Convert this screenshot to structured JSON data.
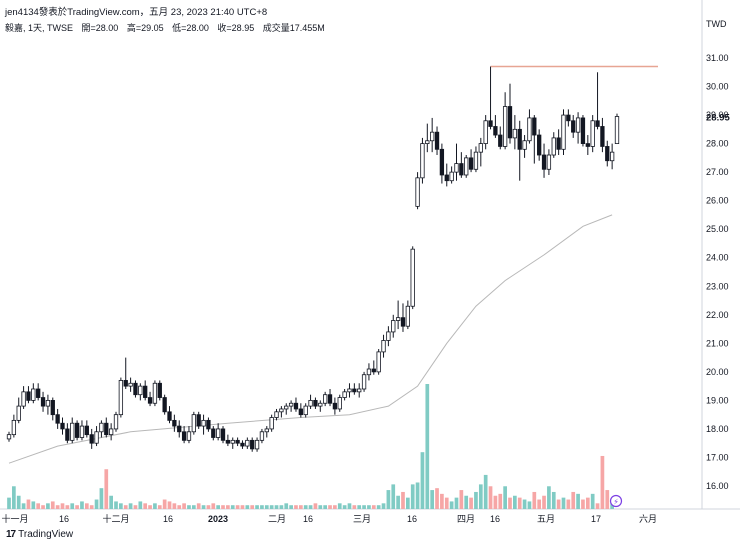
{
  "header": {
    "publisher": "jen4134發表於TradingView.com，五月 23, 2023 21:40 UTC+8",
    "symbol": "毅嘉, 1天, TWSE",
    "ohlcv": [
      "開=28.00",
      "高=29.05",
      "低=28.00",
      "收=28.95",
      "成交量17.455M"
    ]
  },
  "footer": {
    "logo": "TradingView"
  },
  "chart_data": {
    "type": "candlestick",
    "currency": "TWD",
    "y_axis_ticks": [
      "16.00",
      "17.00",
      "18.00",
      "19.00",
      "20.00",
      "21.00",
      "22.00",
      "23.00",
      "24.00",
      "25.00",
      "26.00",
      "27.00",
      "28.00",
      "29.00",
      "30.00",
      "31.00"
    ],
    "ylim": [
      15.2,
      31.9
    ],
    "last_price": "28.95",
    "x_axis_ticks": [
      "十一月",
      "16",
      "十二月",
      "16",
      "2023",
      "二月",
      "16",
      "三月",
      "16",
      "四月",
      "16",
      "五月",
      "17",
      "六月"
    ],
    "resistance_line": 30.7,
    "colors": {
      "up_candle": "#ffffff",
      "down_candle": "#131722",
      "volume_up": "#80cbc4",
      "volume_down": "#f6a6a6",
      "moving_average": "#b8b8b8",
      "resistance": "#e7a593"
    },
    "candles": [
      [
        17.65,
        17.9,
        17.55,
        17.8
      ],
      [
        17.8,
        18.5,
        17.7,
        18.3
      ],
      [
        18.3,
        19.1,
        18.2,
        18.8
      ],
      [
        18.8,
        19.5,
        18.7,
        19.3
      ],
      [
        19.3,
        19.5,
        18.9,
        19.0
      ],
      [
        19.0,
        19.6,
        18.9,
        19.4
      ],
      [
        19.4,
        19.6,
        19.0,
        19.1
      ],
      [
        19.1,
        19.3,
        18.6,
        18.8
      ],
      [
        18.8,
        19.2,
        18.5,
        19.0
      ],
      [
        19.0,
        19.1,
        18.3,
        18.5
      ],
      [
        18.5,
        18.7,
        18.0,
        18.2
      ],
      [
        18.2,
        18.4,
        17.8,
        18.0
      ],
      [
        18.0,
        18.2,
        17.5,
        17.6
      ],
      [
        17.6,
        18.4,
        17.5,
        18.2
      ],
      [
        18.2,
        18.3,
        17.6,
        17.7
      ],
      [
        17.7,
        18.3,
        17.6,
        18.1
      ],
      [
        18.1,
        18.3,
        17.7,
        17.8
      ],
      [
        17.8,
        18.0,
        17.3,
        17.5
      ],
      [
        17.5,
        18.1,
        17.4,
        17.9
      ],
      [
        17.9,
        18.3,
        17.7,
        18.2
      ],
      [
        18.2,
        18.4,
        17.7,
        17.8
      ],
      [
        17.8,
        18.2,
        17.6,
        18.0
      ],
      [
        18.0,
        18.6,
        17.9,
        18.5
      ],
      [
        18.5,
        19.8,
        18.4,
        19.7
      ],
      [
        19.7,
        20.5,
        19.4,
        19.5
      ],
      [
        19.5,
        19.8,
        19.3,
        19.6
      ],
      [
        19.6,
        19.7,
        19.1,
        19.2
      ],
      [
        19.2,
        19.6,
        19.0,
        19.5
      ],
      [
        19.5,
        19.7,
        19.0,
        19.1
      ],
      [
        19.1,
        19.3,
        18.8,
        18.9
      ],
      [
        18.9,
        19.7,
        18.8,
        19.6
      ],
      [
        19.6,
        19.7,
        19.0,
        19.1
      ],
      [
        19.1,
        19.2,
        18.5,
        18.6
      ],
      [
        18.6,
        18.8,
        18.2,
        18.3
      ],
      [
        18.3,
        18.5,
        17.9,
        18.1
      ],
      [
        18.1,
        18.3,
        17.7,
        17.9
      ],
      [
        17.9,
        18.1,
        17.5,
        17.6
      ],
      [
        17.6,
        18.1,
        17.5,
        17.9
      ],
      [
        17.9,
        18.6,
        17.8,
        18.5
      ],
      [
        18.5,
        18.6,
        18.0,
        18.1
      ],
      [
        18.1,
        18.5,
        17.8,
        18.3
      ],
      [
        18.3,
        18.4,
        17.9,
        18.0
      ],
      [
        18.0,
        18.1,
        17.6,
        17.7
      ],
      [
        17.7,
        18.2,
        17.6,
        18.0
      ],
      [
        18.0,
        18.1,
        17.5,
        17.6
      ],
      [
        17.6,
        17.8,
        17.4,
        17.5
      ],
      [
        17.5,
        17.7,
        17.3,
        17.6
      ],
      [
        17.6,
        17.7,
        17.4,
        17.5
      ],
      [
        17.5,
        17.6,
        17.3,
        17.4
      ],
      [
        17.4,
        17.7,
        17.3,
        17.6
      ],
      [
        17.6,
        17.7,
        17.2,
        17.3
      ],
      [
        17.3,
        17.7,
        17.2,
        17.6
      ],
      [
        17.6,
        18.0,
        17.5,
        17.9
      ],
      [
        17.9,
        18.1,
        17.7,
        18.0
      ],
      [
        18.0,
        18.5,
        17.9,
        18.4
      ],
      [
        18.4,
        18.7,
        18.3,
        18.6
      ],
      [
        18.6,
        18.8,
        18.4,
        18.7
      ],
      [
        18.7,
        18.9,
        18.5,
        18.8
      ],
      [
        18.8,
        19.0,
        18.6,
        18.9
      ],
      [
        18.9,
        19.1,
        18.6,
        18.7
      ],
      [
        18.7,
        18.9,
        18.4,
        18.5
      ],
      [
        18.5,
        18.9,
        18.4,
        18.8
      ],
      [
        18.8,
        19.2,
        18.7,
        19.0
      ],
      [
        19.0,
        19.1,
        18.7,
        18.8
      ],
      [
        18.8,
        19.0,
        18.6,
        18.9
      ],
      [
        18.9,
        19.3,
        18.8,
        19.2
      ],
      [
        19.2,
        19.4,
        18.8,
        18.9
      ],
      [
        18.9,
        19.1,
        18.5,
        18.7
      ],
      [
        18.7,
        19.2,
        18.6,
        19.1
      ],
      [
        19.1,
        19.4,
        19.0,
        19.3
      ],
      [
        19.3,
        19.6,
        19.1,
        19.4
      ],
      [
        19.4,
        19.6,
        19.2,
        19.3
      ],
      [
        19.3,
        19.6,
        19.1,
        19.4
      ],
      [
        19.4,
        20.0,
        19.3,
        19.9
      ],
      [
        19.9,
        20.3,
        19.7,
        20.1
      ],
      [
        20.1,
        20.4,
        19.9,
        20.0
      ],
      [
        20.0,
        20.8,
        19.9,
        20.7
      ],
      [
        20.7,
        21.3,
        20.5,
        21.1
      ],
      [
        21.1,
        21.6,
        20.9,
        21.4
      ],
      [
        21.4,
        22.0,
        21.2,
        21.8
      ],
      [
        21.8,
        22.5,
        21.5,
        21.9
      ],
      [
        21.9,
        22.4,
        21.4,
        21.6
      ],
      [
        21.6,
        22.5,
        21.5,
        22.3
      ],
      [
        22.3,
        24.4,
        22.2,
        24.3
      ],
      [
        25.8,
        27.0,
        25.7,
        26.8
      ],
      [
        26.8,
        28.2,
        26.6,
        28.0
      ],
      [
        28.0,
        28.7,
        27.7,
        28.1
      ],
      [
        28.1,
        28.9,
        27.7,
        28.4
      ],
      [
        28.4,
        28.6,
        27.6,
        27.8
      ],
      [
        27.8,
        28.0,
        26.6,
        26.9
      ],
      [
        26.9,
        27.3,
        26.5,
        26.7
      ],
      [
        26.7,
        27.2,
        26.6,
        27.0
      ],
      [
        27.0,
        28.0,
        26.7,
        27.3
      ],
      [
        27.3,
        27.7,
        26.8,
        26.9
      ],
      [
        26.9,
        27.6,
        26.8,
        27.5
      ],
      [
        27.5,
        27.8,
        27.0,
        27.1
      ],
      [
        27.1,
        27.9,
        27.0,
        27.7
      ],
      [
        27.7,
        28.2,
        27.2,
        28.0
      ],
      [
        28.0,
        29.0,
        27.8,
        28.8
      ],
      [
        28.8,
        30.7,
        28.5,
        28.6
      ],
      [
        28.6,
        29.0,
        28.2,
        28.3
      ],
      [
        28.3,
        28.6,
        27.8,
        27.9
      ],
      [
        27.9,
        29.8,
        27.8,
        29.3
      ],
      [
        29.3,
        30.1,
        28.0,
        28.2
      ],
      [
        28.2,
        29.0,
        27.8,
        28.5
      ],
      [
        28.5,
        28.8,
        26.7,
        27.8
      ],
      [
        27.8,
        28.3,
        27.5,
        28.1
      ],
      [
        28.1,
        29.2,
        28.0,
        28.9
      ],
      [
        28.9,
        29.0,
        27.3,
        28.3
      ],
      [
        28.3,
        28.5,
        27.4,
        27.6
      ],
      [
        27.6,
        28.0,
        26.8,
        27.1
      ],
      [
        27.1,
        27.8,
        26.9,
        27.6
      ],
      [
        27.6,
        28.4,
        27.5,
        28.2
      ],
      [
        28.2,
        28.5,
        27.6,
        27.8
      ],
      [
        27.8,
        29.2,
        27.6,
        29.0
      ],
      [
        29.0,
        29.2,
        28.6,
        28.8
      ],
      [
        28.8,
        29.0,
        28.2,
        28.4
      ],
      [
        28.4,
        29.1,
        28.0,
        28.9
      ],
      [
        28.9,
        29.0,
        27.9,
        28.0
      ],
      [
        28.0,
        28.3,
        27.6,
        27.9
      ],
      [
        27.9,
        29.0,
        27.7,
        28.8
      ],
      [
        28.8,
        30.5,
        28.5,
        28.6
      ],
      [
        28.6,
        28.9,
        27.7,
        27.9
      ],
      [
        27.9,
        28.1,
        27.2,
        27.4
      ],
      [
        27.4,
        28.0,
        27.1,
        27.7
      ],
      [
        28.0,
        29.05,
        28.0,
        28.95
      ]
    ],
    "volume": [
      6,
      12,
      7,
      3,
      5,
      4,
      3,
      2,
      3,
      4,
      2,
      3,
      2,
      3,
      2,
      4,
      3,
      2,
      5,
      11,
      21,
      7,
      4,
      3,
      2,
      3,
      2,
      4,
      3,
      2,
      3,
      2,
      5,
      4,
      3,
      2,
      3,
      2,
      2,
      3,
      2,
      2,
      3,
      2,
      2,
      2,
      2,
      2,
      2,
      2,
      2,
      2,
      2,
      2,
      2,
      2,
      2,
      3,
      2,
      2,
      2,
      2,
      2,
      3,
      2,
      2,
      2,
      2,
      3,
      2,
      3,
      2,
      2,
      2,
      2,
      2,
      2,
      3,
      10,
      13,
      7,
      9,
      6,
      13,
      14,
      30,
      66,
      10,
      11,
      8,
      6,
      4,
      6,
      10,
      7,
      6,
      9,
      13,
      18,
      12,
      7,
      8,
      12,
      6,
      7,
      6,
      5,
      4,
      9,
      5,
      7,
      12,
      9,
      5,
      6,
      5,
      9,
      8,
      5,
      6,
      8,
      3,
      28,
      10,
      4
    ],
    "moving_average": [
      [
        0,
        16.8
      ],
      [
        10,
        17.4
      ],
      [
        25,
        17.9
      ],
      [
        45,
        18.2
      ],
      [
        60,
        18.4
      ],
      [
        70,
        18.5
      ],
      [
        78,
        18.8
      ],
      [
        84,
        19.5
      ],
      [
        90,
        21.0
      ],
      [
        96,
        22.3
      ],
      [
        102,
        23.2
      ],
      [
        110,
        24.1
      ],
      [
        118,
        25.1
      ],
      [
        124,
        25.5
      ]
    ]
  }
}
